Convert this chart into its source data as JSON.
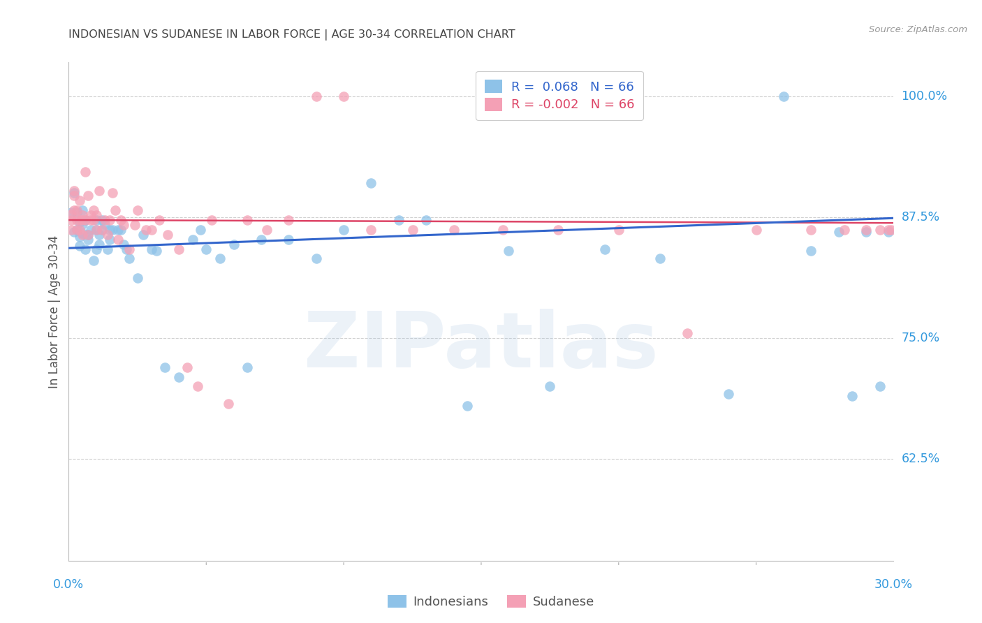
{
  "title": "INDONESIAN VS SUDANESE IN LABOR FORCE | AGE 30-34 CORRELATION CHART",
  "source": "Source: ZipAtlas.com",
  "ylabel": "In Labor Force | Age 30-34",
  "xlim": [
    0.0,
    0.3
  ],
  "ylim": [
    0.52,
    1.035
  ],
  "yticks": [
    1.0,
    0.875,
    0.75,
    0.625
  ],
  "ytick_labels": [
    "100.0%",
    "87.5%",
    "75.0%",
    "62.5%"
  ],
  "blue_R": 0.068,
  "blue_N": 66,
  "pink_R": -0.002,
  "pink_N": 66,
  "blue_color": "#8EC2E8",
  "pink_color": "#F4A0B5",
  "blue_line_color": "#3366CC",
  "pink_line_color": "#DD4466",
  "background_color": "#FFFFFF",
  "grid_color": "#CCCCCC",
  "title_color": "#444444",
  "axis_label_color": "#555555",
  "tick_label_color": "#3399DD",
  "watermark": "ZIPatlas",
  "blue_line_x0": 0.0,
  "blue_line_y0": 0.843,
  "blue_line_x1": 0.3,
  "blue_line_y1": 0.874,
  "pink_line_x0": 0.0,
  "pink_line_y0": 0.872,
  "pink_line_x1": 0.3,
  "pink_line_y1": 0.869,
  "blue_x": [
    0.001,
    0.002,
    0.002,
    0.003,
    0.003,
    0.004,
    0.004,
    0.004,
    0.005,
    0.005,
    0.005,
    0.006,
    0.006,
    0.007,
    0.007,
    0.008,
    0.009,
    0.01,
    0.01,
    0.01,
    0.011,
    0.011,
    0.012,
    0.012,
    0.013,
    0.014,
    0.015,
    0.015,
    0.016,
    0.018,
    0.019,
    0.02,
    0.021,
    0.022,
    0.025,
    0.027,
    0.03,
    0.032,
    0.035,
    0.04,
    0.045,
    0.048,
    0.05,
    0.055,
    0.06,
    0.065,
    0.07,
    0.08,
    0.09,
    0.1,
    0.11,
    0.12,
    0.13,
    0.145,
    0.16,
    0.175,
    0.195,
    0.215,
    0.24,
    0.26,
    0.27,
    0.28,
    0.285,
    0.29,
    0.295,
    0.298
  ],
  "blue_y": [
    0.88,
    0.86,
    0.9,
    0.862,
    0.88,
    0.855,
    0.87,
    0.845,
    0.858,
    0.868,
    0.882,
    0.842,
    0.872,
    0.852,
    0.857,
    0.862,
    0.83,
    0.862,
    0.872,
    0.842,
    0.857,
    0.847,
    0.872,
    0.862,
    0.868,
    0.842,
    0.852,
    0.862,
    0.862,
    0.862,
    0.862,
    0.847,
    0.842,
    0.832,
    0.812,
    0.857,
    0.842,
    0.84,
    0.72,
    0.71,
    0.852,
    0.862,
    0.842,
    0.832,
    0.847,
    0.72,
    0.852,
    0.852,
    0.832,
    0.862,
    0.91,
    0.872,
    0.872,
    0.68,
    0.84,
    0.7,
    0.842,
    0.832,
    0.692,
    1.0,
    0.84,
    0.86,
    0.69,
    0.86,
    0.7,
    0.86
  ],
  "pink_x": [
    0.001,
    0.001,
    0.001,
    0.002,
    0.002,
    0.002,
    0.003,
    0.003,
    0.003,
    0.004,
    0.004,
    0.004,
    0.005,
    0.005,
    0.005,
    0.006,
    0.006,
    0.007,
    0.007,
    0.008,
    0.008,
    0.009,
    0.009,
    0.01,
    0.01,
    0.011,
    0.012,
    0.013,
    0.014,
    0.015,
    0.016,
    0.017,
    0.018,
    0.019,
    0.02,
    0.022,
    0.024,
    0.025,
    0.028,
    0.03,
    0.033,
    0.036,
    0.04,
    0.043,
    0.047,
    0.052,
    0.058,
    0.065,
    0.072,
    0.08,
    0.09,
    0.1,
    0.11,
    0.125,
    0.14,
    0.158,
    0.178,
    0.2,
    0.225,
    0.25,
    0.27,
    0.282,
    0.29,
    0.295,
    0.298,
    0.299
  ],
  "pink_y": [
    0.878,
    0.872,
    0.862,
    0.882,
    0.897,
    0.902,
    0.872,
    0.882,
    0.862,
    0.872,
    0.892,
    0.862,
    0.877,
    0.872,
    0.857,
    0.872,
    0.922,
    0.857,
    0.897,
    0.872,
    0.877,
    0.882,
    0.872,
    0.877,
    0.862,
    0.902,
    0.862,
    0.872,
    0.857,
    0.872,
    0.9,
    0.882,
    0.852,
    0.872,
    0.867,
    0.842,
    0.867,
    0.882,
    0.862,
    0.862,
    0.872,
    0.857,
    0.842,
    0.72,
    0.7,
    0.872,
    0.682,
    0.872,
    0.862,
    0.872,
    1.0,
    1.0,
    0.862,
    0.862,
    0.862,
    0.862,
    0.862,
    0.862,
    0.755,
    0.862,
    0.862,
    0.862,
    0.862,
    0.862,
    0.862,
    0.862
  ]
}
